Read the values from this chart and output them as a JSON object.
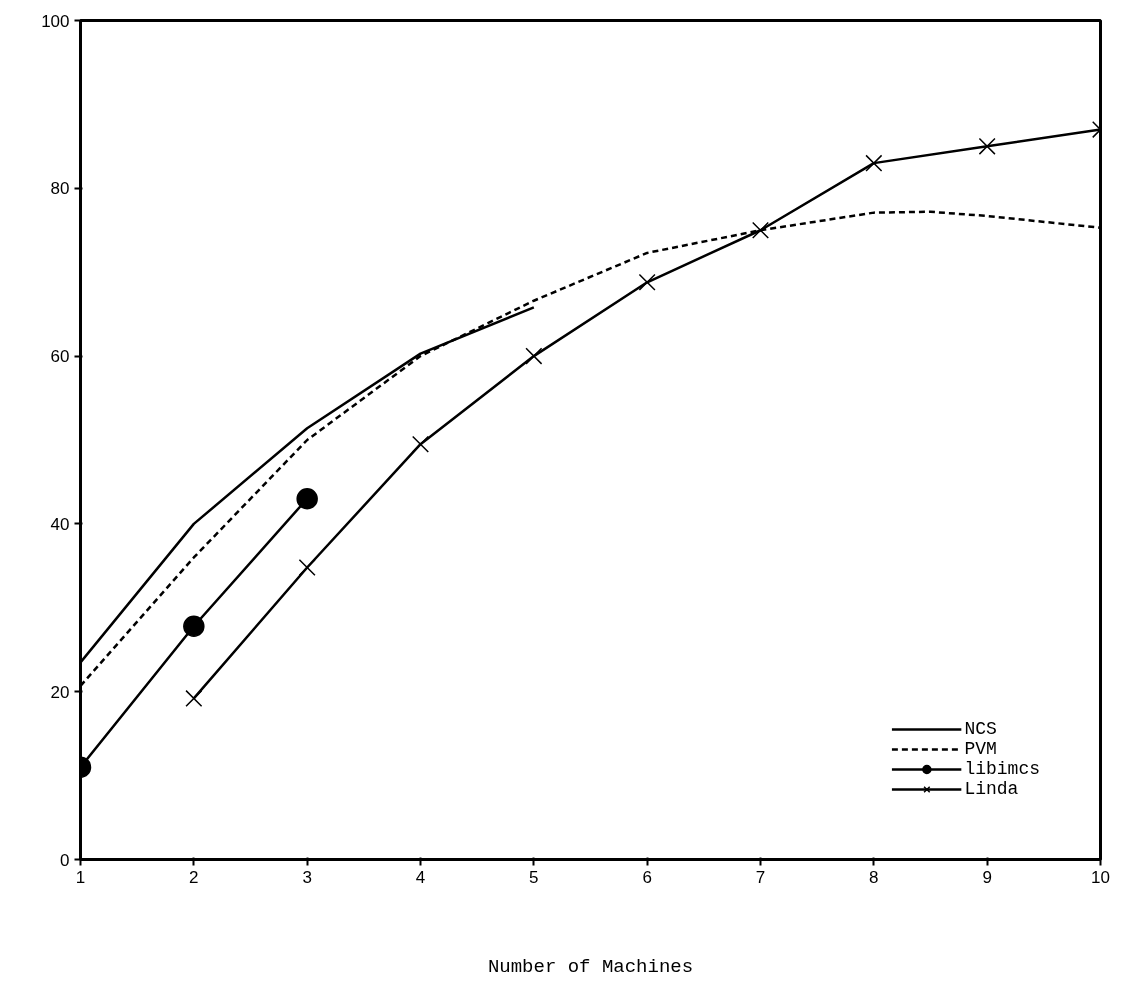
{
  "chart_data": {
    "type": "line",
    "xlabel": "Number of Machines",
    "xlim": [
      1,
      10
    ],
    "ylim": [
      0,
      100
    ],
    "xticks": [
      1,
      2,
      3,
      4,
      5,
      6,
      7,
      8,
      9,
      10
    ],
    "yticks": [
      0,
      20,
      40,
      60,
      80,
      100
    ],
    "grid": false,
    "legend": "bottom right",
    "series": [
      {
        "name": "NCS",
        "color": "#000000",
        "x": [
          1,
          2,
          3,
          4,
          5
        ],
        "values": [
          23.5,
          40,
          51.4,
          60.3,
          65.8
        ],
        "marker": "none",
        "line_style": "solid"
      },
      {
        "name": "PVM",
        "color": "#000000",
        "x": [
          1,
          2,
          3,
          4,
          5,
          6,
          7,
          8,
          8.5,
          9,
          10
        ],
        "values": [
          20.7,
          36,
          50,
          60,
          66.6,
          72.3,
          75,
          77.1,
          77.2,
          76.7,
          75.3
        ],
        "marker": "none",
        "line_style": "dashed"
      },
      {
        "name": "libimcs",
        "color": "#000000",
        "x": [
          1,
          2,
          3
        ],
        "values": [
          11,
          27.8,
          43
        ],
        "marker": "circle",
        "line_style": "solid"
      },
      {
        "name": "Linda",
        "color": "#000000",
        "x": [
          2,
          3,
          4,
          5,
          6,
          7,
          8,
          9,
          10
        ],
        "values": [
          19.2,
          34.8,
          49.5,
          60,
          68.8,
          75,
          83,
          85,
          87
        ],
        "marker": "cross",
        "line_style": "solid"
      }
    ]
  }
}
